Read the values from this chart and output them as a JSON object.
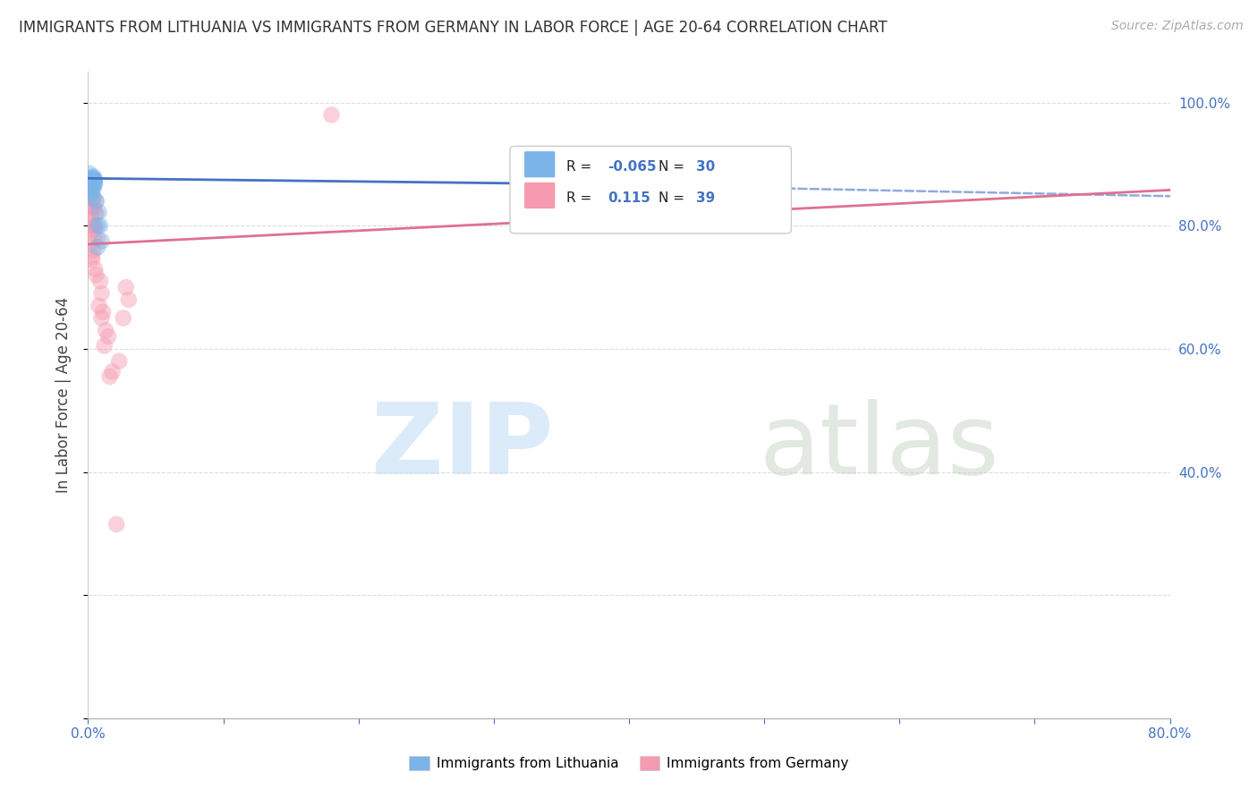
{
  "title": "IMMIGRANTS FROM LITHUANIA VS IMMIGRANTS FROM GERMANY IN LABOR FORCE | AGE 20-64 CORRELATION CHART",
  "source": "Source: ZipAtlas.com",
  "ylabel": "In Labor Force | Age 20-64",
  "legend_entries": [
    {
      "label": "Immigrants from Lithuania",
      "color": "#a8c8f0",
      "R": -0.065,
      "N": 30
    },
    {
      "label": "Immigrants from Germany",
      "color": "#f5a8b8",
      "R": 0.115,
      "N": 39
    }
  ],
  "lithuania_scatter_x": [
    0.0,
    0.001,
    0.002,
    0.003,
    0.004,
    0.005,
    0.003,
    0.004,
    0.002,
    0.001,
    0.003,
    0.005,
    0.004,
    0.003,
    0.004,
    0.002,
    0.003,
    0.004,
    0.005,
    0.003,
    0.004,
    0.003,
    0.005,
    0.004,
    0.008,
    0.01,
    0.007,
    0.006,
    0.007,
    0.009
  ],
  "lithuania_scatter_y": [
    0.875,
    0.885,
    0.875,
    0.87,
    0.88,
    0.875,
    0.865,
    0.872,
    0.87,
    0.86,
    0.878,
    0.874,
    0.876,
    0.869,
    0.873,
    0.855,
    0.862,
    0.871,
    0.868,
    0.874,
    0.86,
    0.852,
    0.868,
    0.845,
    0.822,
    0.775,
    0.765,
    0.84,
    0.8,
    0.8
  ],
  "germany_scatter_x": [
    0.001,
    0.002,
    0.004,
    0.005,
    0.006,
    0.002,
    0.003,
    0.003,
    0.004,
    0.004,
    0.002,
    0.003,
    0.005,
    0.006,
    0.004,
    0.002,
    0.004,
    0.005,
    0.003,
    0.003,
    0.006,
    0.005,
    0.007,
    0.009,
    0.01,
    0.011,
    0.013,
    0.016,
    0.012,
    0.015,
    0.018,
    0.021,
    0.023,
    0.026,
    0.18,
    0.028,
    0.03,
    0.01,
    0.008
  ],
  "germany_scatter_y": [
    0.873,
    0.862,
    0.78,
    0.82,
    0.84,
    0.795,
    0.86,
    0.84,
    0.8,
    0.83,
    0.815,
    0.845,
    0.795,
    0.82,
    0.83,
    0.77,
    0.76,
    0.8,
    0.75,
    0.745,
    0.72,
    0.73,
    0.78,
    0.71,
    0.69,
    0.66,
    0.63,
    0.555,
    0.605,
    0.62,
    0.563,
    0.315,
    0.58,
    0.65,
    0.98,
    0.7,
    0.68,
    0.65,
    0.67
  ],
  "xlim": [
    0.0,
    0.8
  ],
  "ylim": [
    0.0,
    1.05
  ],
  "title_fontsize": 12,
  "source_fontsize": 10,
  "tick_color": "#4472c4",
  "grid_color": "#cccccc",
  "scatter_size": 180,
  "scatter_alpha": 0.45,
  "lithuania_color": "#7ab4e8",
  "germany_color": "#f59ab0",
  "lithuania_line_color": "#4472c4",
  "germany_line_color": "#e07090",
  "legend_R_color": "#4472c4",
  "legend_N_color": "#4472c4"
}
